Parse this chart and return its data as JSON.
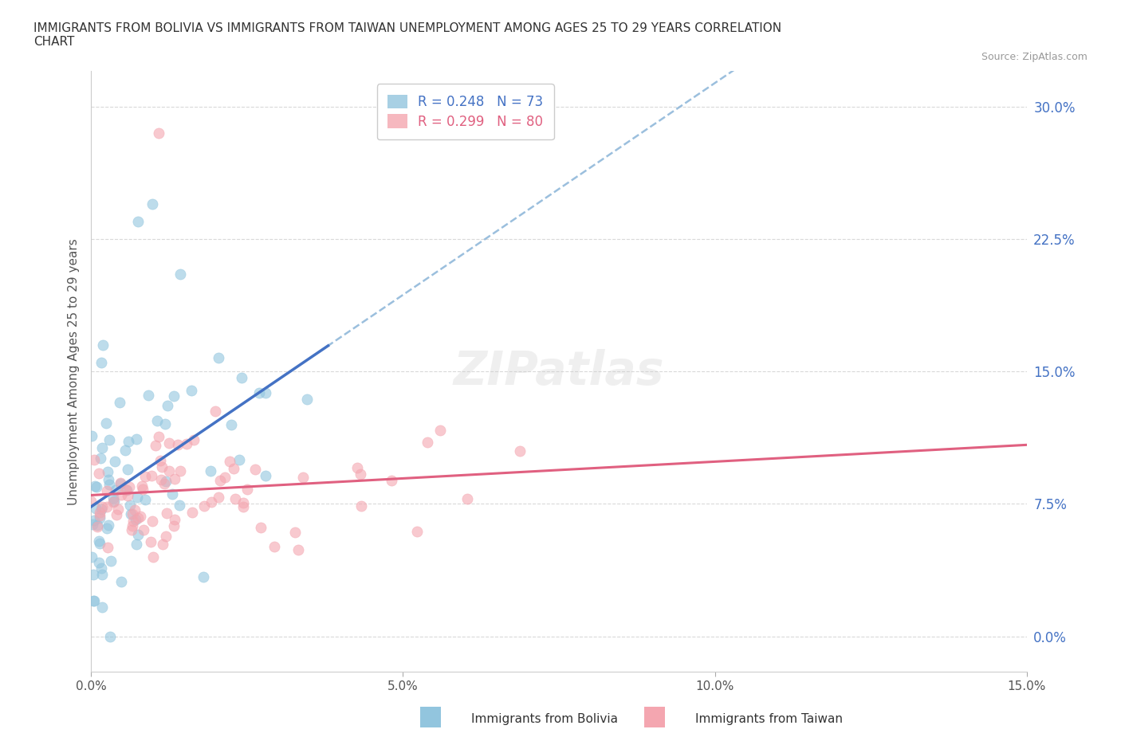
{
  "title": "IMMIGRANTS FROM BOLIVIA VS IMMIGRANTS FROM TAIWAN UNEMPLOYMENT AMONG AGES 25 TO 29 YEARS CORRELATION\nCHART",
  "source": "Source: ZipAtlas.com",
  "xlabel_bolivia": "Immigrants from Bolivia",
  "xlabel_taiwan": "Immigrants from Taiwan",
  "ylabel": "Unemployment Among Ages 25 to 29 years",
  "xlim": [
    0.0,
    0.15
  ],
  "ylim": [
    -0.02,
    0.32
  ],
  "ytick_vals": [
    0.0,
    0.075,
    0.15,
    0.225,
    0.3
  ],
  "ytick_labels": [
    "0.0%",
    "7.5%",
    "15.0%",
    "22.5%",
    "30.0%"
  ],
  "xtick_vals": [
    0.0,
    0.05,
    0.1,
    0.15
  ],
  "xtick_labels": [
    "0.0%",
    "5.0%",
    "10.0%",
    "15.0%"
  ],
  "bolivia_color": "#92c5de",
  "taiwan_color": "#f4a6b0",
  "trend_bolivia_color": "#4472c4",
  "trend_taiwan_color": "#e06080",
  "dashed_color": "#8ab4d8",
  "R_bolivia": 0.248,
  "N_bolivia": 73,
  "R_taiwan": 0.299,
  "N_taiwan": 80,
  "bolivia_seed": 42,
  "taiwan_seed": 7,
  "watermark": "ZIPatlas",
  "background_color": "#ffffff",
  "grid_color": "#d0d0d0",
  "ytick_color": "#4472c4",
  "xtick_color": "#555555"
}
